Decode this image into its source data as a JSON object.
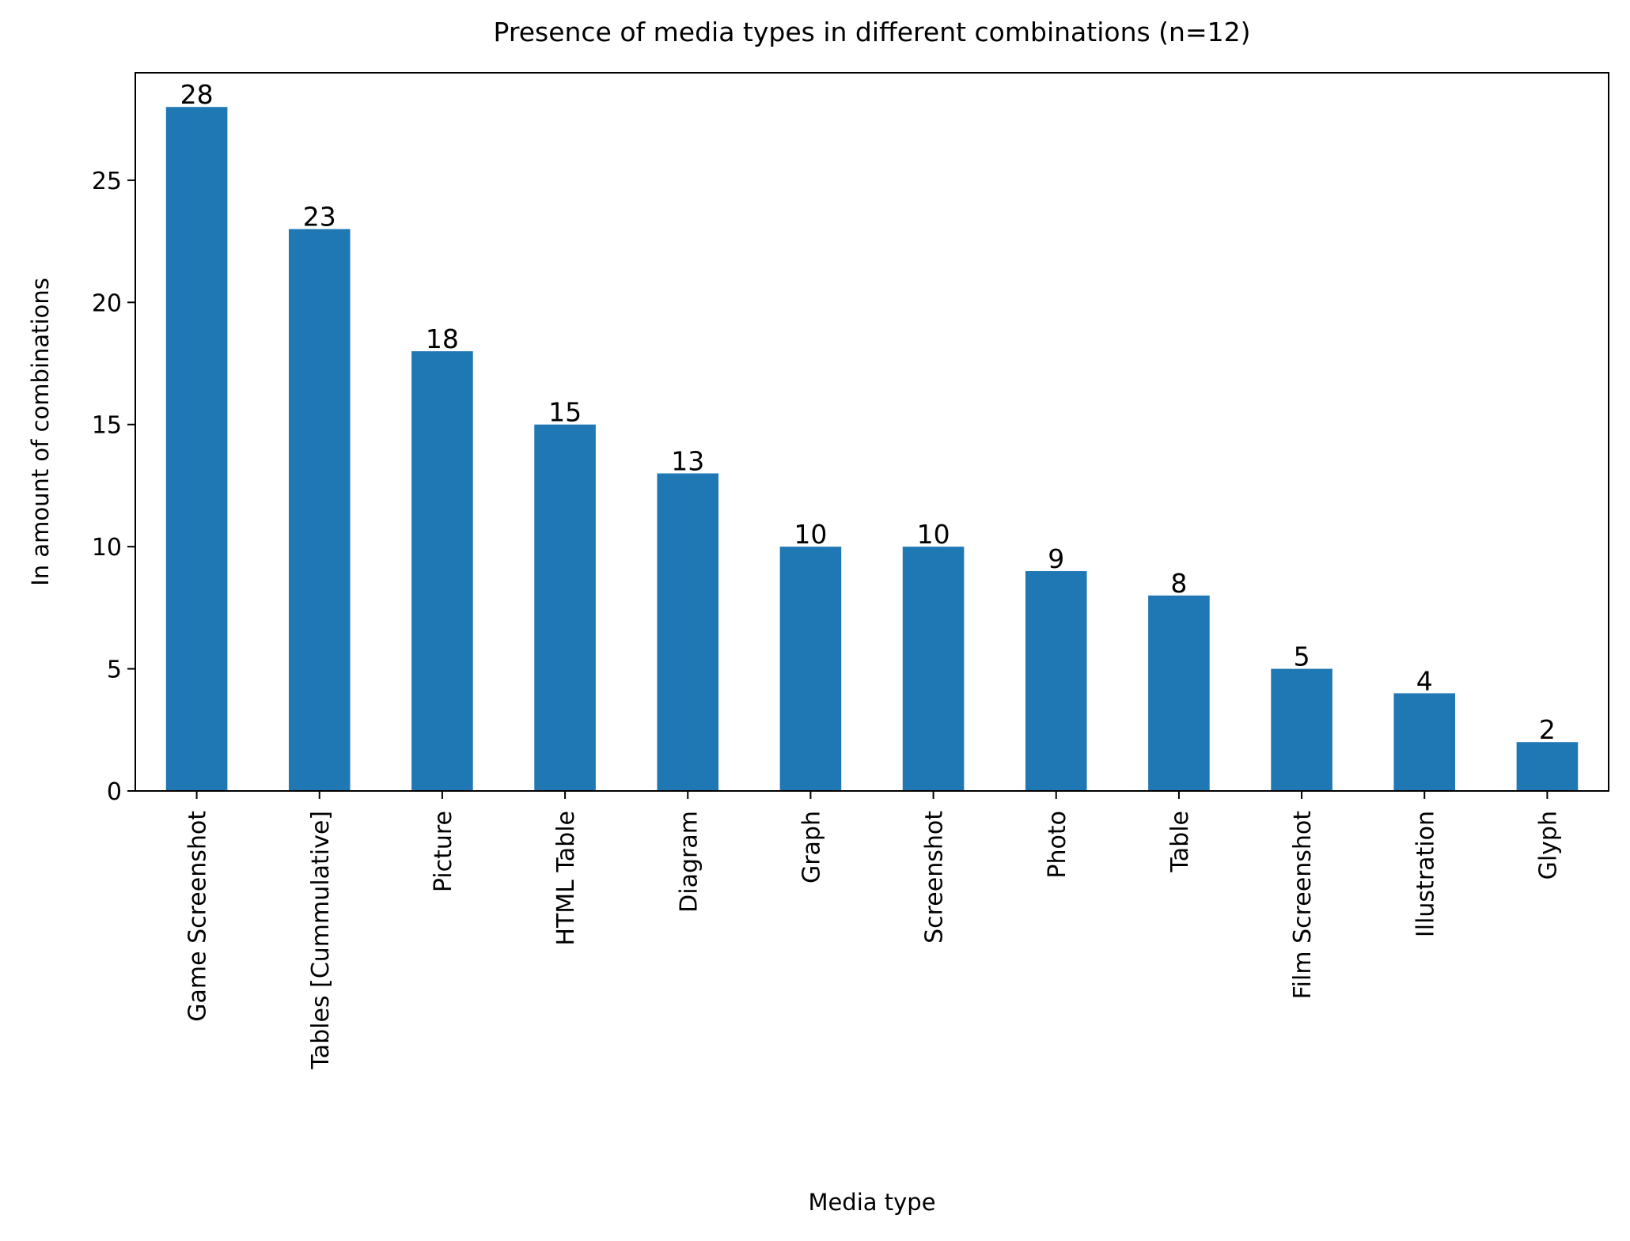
{
  "chart_data": {
    "type": "bar",
    "title": "Presence of media types in different combinations (n=12)",
    "xlabel": "Media type",
    "ylabel": "In amount of combinations",
    "categories": [
      "Game Screenshot",
      "Tables [Cummulative]",
      "Picture",
      "HTML Table",
      "Diagram",
      "Graph",
      "Screenshot",
      "Photo",
      "Table",
      "Film Screenshot",
      "Illustration",
      "Glyph"
    ],
    "values": [
      28,
      23,
      18,
      15,
      13,
      10,
      10,
      9,
      8,
      5,
      4,
      2
    ],
    "ylim": [
      0,
      29.4
    ],
    "yticks": [
      0,
      5,
      10,
      15,
      20,
      25
    ],
    "grid": false,
    "legend": "none",
    "bar_color": "#1f77b4"
  }
}
